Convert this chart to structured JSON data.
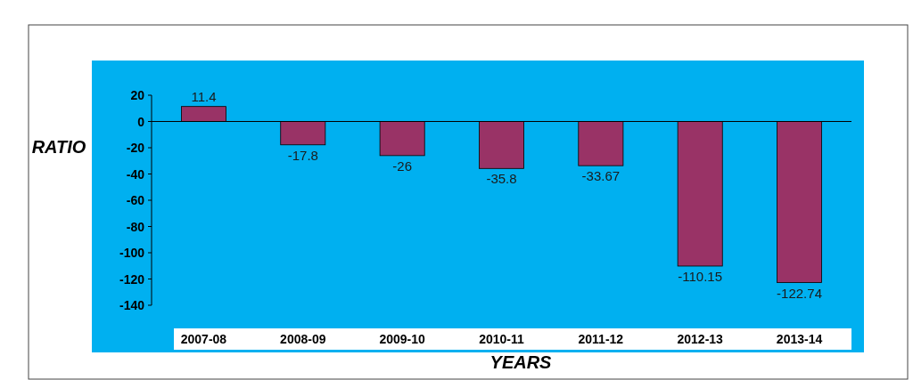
{
  "chart_data": {
    "type": "bar",
    "xlabel": "YEARS",
    "ylabel": "RATIO",
    "categories": [
      "2007-08",
      "2008-09",
      "2009-10",
      "2010-11",
      "2011-12",
      "2012-13",
      "2013-14"
    ],
    "values": [
      11.4,
      -17.8,
      -26,
      -35.8,
      -33.67,
      -110.15,
      -122.74
    ],
    "color": "#993366",
    "ylim": [
      -140,
      20
    ],
    "yticks": [
      -140,
      -120,
      -100,
      -80,
      -60,
      -40,
      -20,
      0,
      20
    ],
    "data_labels": true
  }
}
